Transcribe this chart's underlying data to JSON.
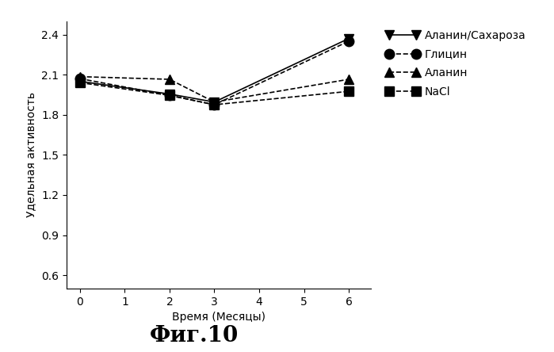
{
  "x": [
    0,
    2,
    3,
    6
  ],
  "series": [
    {
      "label": "Аланин/Сахароза",
      "y": [
        2.05,
        1.955,
        1.895,
        2.37
      ],
      "marker": "v",
      "linestyle": "-",
      "color": "#000000"
    },
    {
      "label": "Глицин",
      "y": [
        2.07,
        1.945,
        1.875,
        2.35
      ],
      "marker": "o",
      "linestyle": "--",
      "color": "#000000"
    },
    {
      "label": "Аланин",
      "y": [
        2.085,
        2.065,
        1.895,
        2.065
      ],
      "marker": "^",
      "linestyle": "--",
      "color": "#000000"
    },
    {
      "label": "NaCl",
      "y": [
        2.04,
        1.945,
        1.875,
        1.975
      ],
      "marker": "s",
      "linestyle": "--",
      "color": "#000000"
    }
  ],
  "xlabel": "Время (Месяцы)",
  "ylabel": "Удельная активность",
  "title": "Фиг.10",
  "ylim": [
    0.5,
    2.5
  ],
  "xlim": [
    -0.3,
    6.5
  ],
  "yticks": [
    0.6,
    0.9,
    1.2,
    1.5,
    1.8,
    2.1,
    2.4
  ],
  "xticks": [
    0,
    1,
    2,
    3,
    4,
    5,
    6
  ],
  "markersize": 9,
  "linewidth": 1.2
}
